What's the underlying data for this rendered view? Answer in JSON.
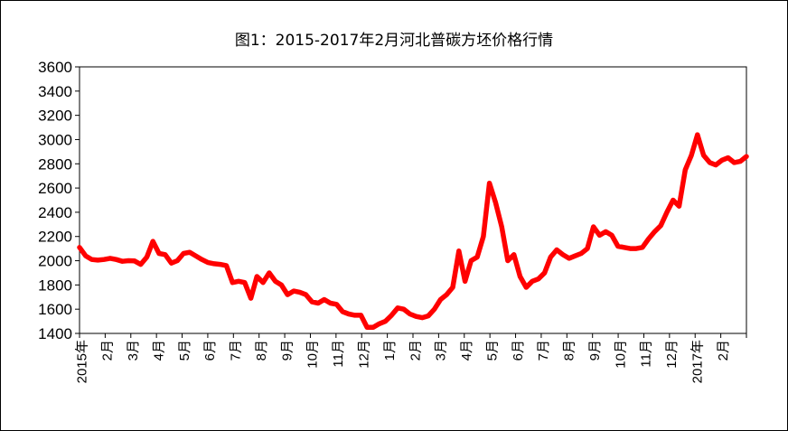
{
  "chart_data": {
    "type": "line",
    "title": "图1：2015-2017年2月河北普碳方坯价格行情",
    "xlabel": "",
    "ylabel": "",
    "ylim": [
      1400,
      3600
    ],
    "yticks": [
      1400,
      1600,
      1800,
      2000,
      2200,
      2400,
      2600,
      2800,
      3000,
      3200,
      3400,
      3600
    ],
    "x_tick_labels": [
      "2015年",
      "2月",
      "3月",
      "4月",
      "5月",
      "6月",
      "7月",
      "8月",
      "9月",
      "10月",
      "11月",
      "12月",
      "1月",
      "2月",
      "3月",
      "4月",
      "5月",
      "6月",
      "7月",
      "8月",
      "9月",
      "10月",
      "11月",
      "12月",
      "2017年",
      "2月"
    ],
    "grid": false,
    "legend": "none",
    "series": [
      {
        "color": "#ff0000",
        "values": [
          2110,
          2040,
          2010,
          2005,
          2010,
          2020,
          2010,
          1995,
          2000,
          1998,
          1970,
          2030,
          2160,
          2060,
          2050,
          1980,
          2000,
          2060,
          2070,
          2040,
          2010,
          1985,
          1975,
          1970,
          1960,
          1820,
          1830,
          1820,
          1690,
          1870,
          1820,
          1900,
          1830,
          1800,
          1720,
          1750,
          1740,
          1720,
          1660,
          1650,
          1680,
          1650,
          1640,
          1580,
          1560,
          1550,
          1550,
          1450,
          1450,
          1480,
          1500,
          1550,
          1610,
          1600,
          1560,
          1540,
          1530,
          1545,
          1600,
          1680,
          1720,
          1780,
          2080,
          1830,
          2000,
          2030,
          2200,
          2640,
          2480,
          2280,
          2000,
          2050,
          1870,
          1780,
          1830,
          1850,
          1900,
          2030,
          2090,
          2050,
          2020,
          2040,
          2060,
          2100,
          2280,
          2210,
          2240,
          2210,
          2120,
          2110,
          2100,
          2100,
          2110,
          2180,
          2240,
          2290,
          2400,
          2500,
          2450,
          2750,
          2870,
          3040,
          2870,
          2810,
          2790,
          2830,
          2850,
          2810,
          2820,
          2860
        ]
      }
    ]
  }
}
